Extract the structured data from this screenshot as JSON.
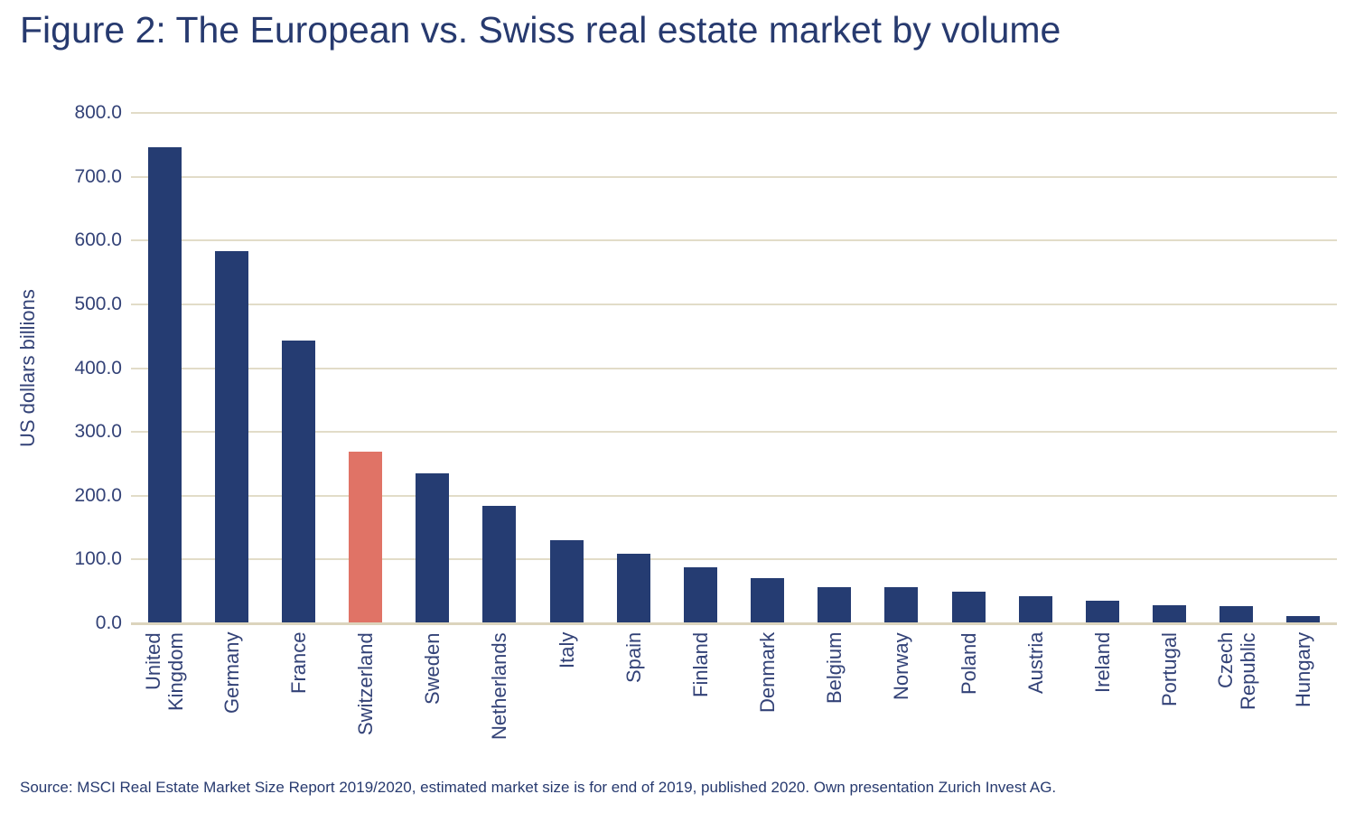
{
  "source_note": "Source: MSCI Real Estate Market Size Report 2019/2020, estimated market size is for end of 2019, published 2020. Own presentation Zurich Invest AG.",
  "chart_data": {
    "type": "bar",
    "title": "Figure 2: The European vs. Swiss real estate market by volume",
    "xlabel": "",
    "ylabel": "US dollars billions",
    "ylim": [
      0,
      800
    ],
    "ytick_interval": 100,
    "ytick_decimals": 1,
    "grid": "horizontal",
    "legend": "none",
    "categories": [
      "United Kingdom",
      "Germany",
      "France",
      "Switzerland",
      "Sweden",
      "Netherlands",
      "Italy",
      "Spain",
      "Finland",
      "Denmark",
      "Belgium",
      "Norway",
      "Poland",
      "Austria",
      "Ireland",
      "Portugal",
      "Czech Republic",
      "Hungary"
    ],
    "values": [
      746.7,
      583.6,
      443.3,
      268.9,
      235.4,
      184.1,
      130.2,
      108.7,
      87.4,
      71.5,
      57.1,
      56.1,
      49.7,
      42.2,
      35.1,
      28.0,
      27.0,
      10.9
    ],
    "highlighted_category": "Switzerland",
    "colors": {
      "bar": "#253C72",
      "highlight": "#E07366",
      "gridline": "#E2DCC8",
      "axis_line": "#DCD4BD",
      "axis_text": "#334277",
      "title_text": "#273A6F",
      "background": "#FFFFFF"
    }
  }
}
